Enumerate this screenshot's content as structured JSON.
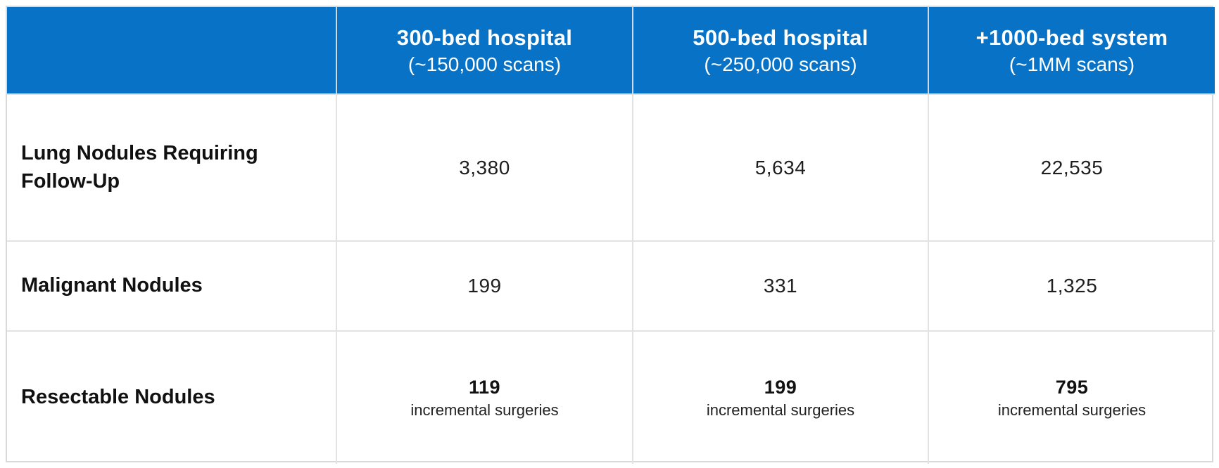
{
  "colors": {
    "header_bg": "#0872c6",
    "header_text": "#ffffff",
    "border": "#e2e2e2",
    "label_text": "#111111",
    "value_text": "#1f1f1f"
  },
  "header": {
    "columns": [
      {
        "title": "300-bed hospital",
        "subtitle": "(~150,000 scans)"
      },
      {
        "title": "500-bed hospital",
        "subtitle": "(~250,000 scans)"
      },
      {
        "title": "+1000-bed system",
        "subtitle": "(~1MM scans)"
      }
    ]
  },
  "rows": [
    {
      "label": "Lung Nodules Requiring Follow-Up",
      "values": [
        "3,380",
        "5,634",
        "22,535"
      ]
    },
    {
      "label": "Malignant Nodules",
      "values": [
        "199",
        "331",
        "1,325"
      ]
    },
    {
      "label": "Resectable Nodules",
      "values": [
        "119",
        "199",
        "795"
      ],
      "suffix": "incremental surgeries"
    }
  ],
  "chart_data": {
    "type": "table",
    "columns": [
      "",
      "300-bed hospital (~150,000 scans)",
      "500-bed hospital (~250,000 scans)",
      "+1000-bed system (~1MM scans)"
    ],
    "rows": [
      [
        "Lung Nodules Requiring Follow-Up",
        "3,380",
        "5,634",
        "22,535"
      ],
      [
        "Malignant Nodules",
        "199",
        "331",
        "1,325"
      ],
      [
        "Resectable Nodules",
        "119 incremental surgeries",
        "199 incremental surgeries",
        "795 incremental surgeries"
      ]
    ]
  }
}
